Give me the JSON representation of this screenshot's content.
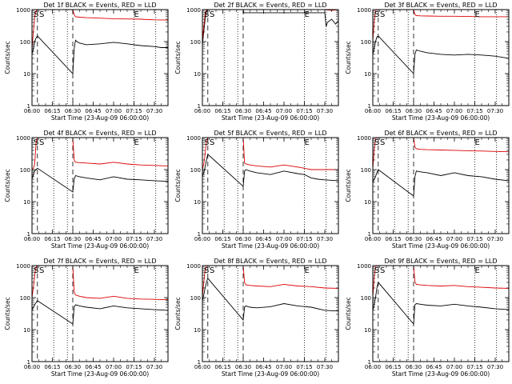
{
  "colors": {
    "events": "#000000",
    "lld": "#dd0000",
    "axis": "#000000"
  },
  "shared": {
    "ylabel": "Counts/sec",
    "xlabel": "Start Time (23-Aug-09 06:00:00)",
    "marker_S": "S",
    "marker_E": "E",
    "scale": "log",
    "ylim": [
      1,
      1000
    ],
    "yticks": [
      "1",
      "10",
      "100",
      "1000"
    ],
    "xticks": [
      "06:00",
      "06:15",
      "06:30",
      "06:45",
      "07:00",
      "07:15",
      "07:30"
    ],
    "xrange_minutes": [
      0,
      100
    ],
    "dashed_lines_minutes": [
      4,
      30
    ],
    "dotted_lines_minutes": [
      16,
      26,
      75,
      91
    ],
    "E_marker_minute": 75
  },
  "chart_data": [
    {
      "type": "line",
      "title": "Det 1f BLACK = Events, RED = LLD",
      "series": [
        {
          "name": "Events",
          "color": "black",
          "x": [
            0,
            1,
            2,
            3,
            4,
            30,
            31,
            32,
            33,
            35,
            40,
            50,
            60,
            70,
            80,
            90,
            95,
            100
          ],
          "y": [
            40,
            60,
            100,
            130,
            150,
            10,
            60,
            110,
            100,
            90,
            80,
            85,
            95,
            85,
            75,
            70,
            65,
            65
          ]
        },
        {
          "name": "LLD",
          "color": "red",
          "x": [
            0,
            1,
            2,
            3,
            4,
            30,
            31,
            32,
            35,
            40,
            50,
            60,
            70,
            80,
            90,
            100
          ],
          "y": [
            60,
            200,
            600,
            900,
            1000,
            1000,
            700,
            600,
            580,
            560,
            540,
            520,
            510,
            500,
            480,
            470
          ]
        }
      ]
    },
    {
      "type": "line",
      "title": "Det 2f BLACK = Events, RED = LLD",
      "series": [
        {
          "name": "Events",
          "color": "black",
          "x": [
            0,
            1,
            2,
            3,
            4,
            5,
            8,
            12,
            16,
            20,
            24,
            28,
            30,
            30.5,
            40,
            50,
            60,
            70,
            80,
            90,
            91,
            92,
            95,
            98,
            100
          ],
          "y": [
            80,
            200,
            500,
            900,
            1000,
            1000,
            1000,
            1000,
            1000,
            1000,
            1000,
            1000,
            1000,
            800,
            800,
            800,
            800,
            800,
            800,
            800,
            300,
            400,
            500,
            350,
            450
          ]
        },
        {
          "name": "LLD",
          "color": "red",
          "x": [
            0,
            1,
            2,
            3,
            4,
            6,
            10,
            14,
            18,
            22,
            26,
            30,
            35,
            40,
            50,
            60,
            70,
            80,
            90,
            95,
            100
          ],
          "y": [
            100,
            300,
            700,
            1000,
            1000,
            1000,
            1000,
            1000,
            1000,
            1000,
            1000,
            1000,
            1000,
            1000,
            1000,
            1000,
            1000,
            1000,
            1000,
            950,
            1000
          ]
        }
      ]
    },
    {
      "type": "line",
      "title": "Det 3f BLACK = Events, RED = LLD",
      "series": [
        {
          "name": "Events",
          "color": "black",
          "x": [
            0,
            1,
            2,
            3,
            4,
            30,
            31,
            32,
            35,
            40,
            50,
            60,
            70,
            80,
            90,
            100
          ],
          "y": [
            40,
            60,
            100,
            140,
            150,
            10,
            40,
            55,
            50,
            45,
            40,
            38,
            40,
            38,
            35,
            30
          ]
        },
        {
          "name": "LLD",
          "color": "red",
          "x": [
            0,
            1,
            2,
            3,
            4,
            30,
            31,
            32,
            35,
            40,
            50,
            60,
            70,
            80,
            90,
            100
          ],
          "y": [
            100,
            400,
            900,
            1000,
            1000,
            1000,
            700,
            650,
            640,
            630,
            620,
            620,
            610,
            600,
            600,
            600
          ]
        }
      ]
    },
    {
      "type": "line",
      "title": "Det 4f BLACK = Events, RED = LLD",
      "series": [
        {
          "name": "Events",
          "color": "black",
          "x": [
            0,
            1,
            2,
            3,
            4,
            30,
            31,
            32,
            35,
            40,
            50,
            60,
            70,
            80,
            90,
            100
          ],
          "y": [
            50,
            70,
            90,
            100,
            110,
            20,
            50,
            65,
            60,
            55,
            48,
            60,
            50,
            48,
            45,
            43
          ]
        },
        {
          "name": "LLD",
          "color": "red",
          "x": [
            0,
            1,
            2,
            3,
            4,
            30,
            31,
            32,
            35,
            40,
            50,
            60,
            70,
            80,
            90,
            100
          ],
          "y": [
            100,
            110,
            150,
            700,
            1000,
            1000,
            200,
            170,
            165,
            160,
            150,
            170,
            150,
            140,
            135,
            130
          ]
        }
      ]
    },
    {
      "type": "line",
      "title": "Det 5f BLACK = Events, RED = LLD",
      "series": [
        {
          "name": "Events",
          "color": "black",
          "x": [
            0,
            1,
            2,
            3,
            4,
            30,
            31,
            32,
            35,
            40,
            50,
            60,
            70,
            75,
            80,
            85,
            90,
            100
          ],
          "y": [
            60,
            80,
            120,
            200,
            300,
            30,
            90,
            100,
            90,
            80,
            70,
            90,
            75,
            70,
            55,
            50,
            48,
            45
          ]
        },
        {
          "name": "LLD",
          "color": "red",
          "x": [
            0,
            1,
            2,
            3,
            4,
            30,
            31,
            32,
            35,
            40,
            50,
            60,
            70,
            75,
            80,
            90,
            100
          ],
          "y": [
            100,
            150,
            300,
            800,
            1000,
            1000,
            160,
            150,
            140,
            130,
            120,
            140,
            120,
            110,
            100,
            100,
            100
          ]
        }
      ]
    },
    {
      "type": "line",
      "title": "Det 6f BLACK = Events, RED = LLD",
      "series": [
        {
          "name": "Events",
          "color": "black",
          "x": [
            0,
            1,
            2,
            3,
            4,
            30,
            31,
            32,
            35,
            40,
            50,
            60,
            70,
            80,
            90,
            100
          ],
          "y": [
            40,
            50,
            60,
            80,
            100,
            15,
            60,
            90,
            85,
            80,
            65,
            80,
            65,
            60,
            50,
            45
          ]
        },
        {
          "name": "LLD",
          "color": "red",
          "x": [
            0,
            1,
            2,
            3,
            4,
            30,
            31,
            32,
            35,
            40,
            50,
            60,
            70,
            80,
            90,
            100
          ],
          "y": [
            100,
            400,
            900,
            1000,
            1000,
            1000,
            500,
            450,
            430,
            420,
            410,
            400,
            390,
            380,
            370,
            360
          ]
        }
      ]
    },
    {
      "type": "line",
      "title": "Det 7f BLACK = Events, RED = LLD",
      "series": [
        {
          "name": "Events",
          "color": "black",
          "x": [
            0,
            1,
            2,
            3,
            4,
            30,
            31,
            32,
            35,
            40,
            50,
            60,
            70,
            80,
            90,
            100
          ],
          "y": [
            40,
            50,
            60,
            70,
            80,
            15,
            50,
            60,
            55,
            50,
            45,
            55,
            48,
            45,
            42,
            40
          ]
        },
        {
          "name": "LLD",
          "color": "red",
          "x": [
            0,
            1,
            2,
            3,
            4,
            30,
            31,
            32,
            35,
            40,
            50,
            60,
            70,
            80,
            90,
            100
          ],
          "y": [
            100,
            200,
            500,
            900,
            1000,
            1000,
            150,
            120,
            110,
            100,
            95,
            110,
            95,
            90,
            88,
            85
          ]
        }
      ]
    },
    {
      "type": "line",
      "title": "Det 8f BLACK = Events, RED = LLD",
      "series": [
        {
          "name": "Events",
          "color": "black",
          "x": [
            0,
            1,
            2,
            3,
            4,
            30,
            31,
            32,
            35,
            40,
            50,
            60,
            70,
            80,
            90,
            100
          ],
          "y": [
            80,
            120,
            200,
            300,
            400,
            20,
            50,
            55,
            50,
            48,
            52,
            65,
            55,
            50,
            40,
            38
          ]
        },
        {
          "name": "LLD",
          "color": "red",
          "x": [
            0,
            1,
            2,
            3,
            4,
            30,
            31,
            32,
            35,
            40,
            50,
            60,
            70,
            80,
            90,
            100
          ],
          "y": [
            100,
            300,
            700,
            1000,
            1000,
            1000,
            300,
            250,
            240,
            230,
            220,
            260,
            230,
            220,
            200,
            195
          ]
        }
      ]
    },
    {
      "type": "line",
      "title": "Det 9f BLACK = Events, RED = LLD",
      "series": [
        {
          "name": "Events",
          "color": "black",
          "x": [
            0,
            1,
            2,
            3,
            4,
            30,
            31,
            32,
            35,
            40,
            50,
            60,
            70,
            80,
            90,
            100
          ],
          "y": [
            40,
            60,
            100,
            200,
            300,
            15,
            60,
            65,
            62,
            58,
            55,
            62,
            55,
            50,
            45,
            42
          ]
        },
        {
          "name": "LLD",
          "color": "red",
          "x": [
            0,
            1,
            2,
            3,
            4,
            30,
            31,
            32,
            35,
            40,
            50,
            60,
            70,
            80,
            90,
            100
          ],
          "y": [
            100,
            400,
            900,
            1000,
            1000,
            1000,
            300,
            260,
            250,
            240,
            230,
            240,
            220,
            210,
            200,
            195
          ]
        }
      ]
    }
  ]
}
